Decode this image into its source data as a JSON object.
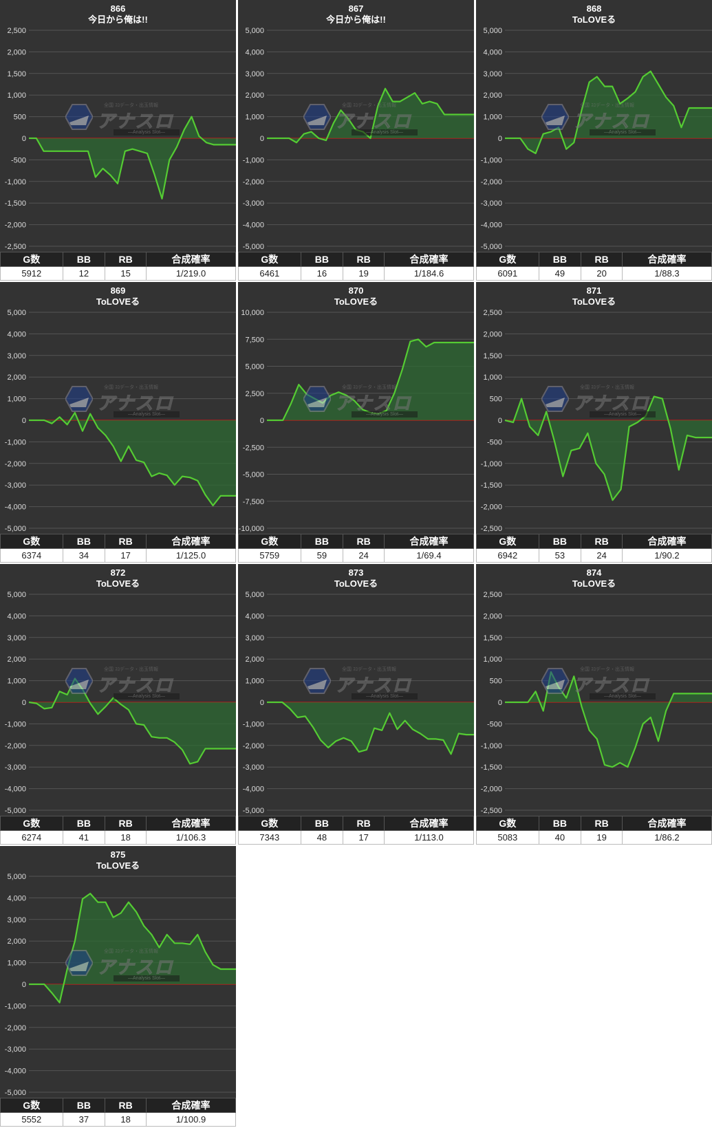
{
  "colors": {
    "panel": "#333333",
    "grid": "#555555",
    "axis_text": "#dddddd",
    "zero_line": "#b01c1c",
    "line": "#55cc33",
    "fill": "#2d6a33"
  },
  "table_headers": [
    "G数",
    "BB",
    "RB",
    "合成確率"
  ],
  "logo": {
    "brand": "アナスロ",
    "sub": "—Analysis Slot—",
    "top": "全国 ｽﾛデータ・出玉情報"
  },
  "chart_data": [
    {
      "type": "area",
      "machine": "866",
      "title": "今日から俺は!!",
      "ylim": [
        -2500,
        2500
      ],
      "yticks": [
        2500,
        2000,
        1500,
        1000,
        500,
        0,
        -500,
        -1000,
        -1500,
        -2000,
        -2500
      ],
      "tick_labels": [
        "2,500",
        "2,000",
        "1,500",
        "1,000",
        "500",
        "0",
        "-500",
        "-1,000",
        "-1,500",
        "-2,000",
        "-2,500"
      ],
      "values": [
        0,
        0,
        -300,
        -300,
        -300,
        -300,
        -300,
        -300,
        -300,
        -900,
        -700,
        -850,
        -1050,
        -300,
        -250,
        -300,
        -350,
        -850,
        -1400,
        -500,
        -200,
        200,
        500,
        50,
        -100,
        -150,
        -150,
        -150,
        -150
      ],
      "stats": {
        "g": "5912",
        "bb": "12",
        "rb": "15",
        "rate": "1/219.0"
      }
    },
    {
      "type": "area",
      "machine": "867",
      "title": "今日から俺は!!",
      "ylim": [
        -5000,
        5000
      ],
      "yticks": [
        5000,
        4000,
        3000,
        2000,
        1000,
        0,
        -1000,
        -2000,
        -3000,
        -4000,
        -5000
      ],
      "tick_labels": [
        "5,000",
        "4,000",
        "3,000",
        "2,000",
        "1,000",
        "0",
        "-1,000",
        "-2,000",
        "-3,000",
        "-4,000",
        "-5,000"
      ],
      "values": [
        0,
        0,
        0,
        0,
        -200,
        200,
        300,
        0,
        -100,
        700,
        1300,
        900,
        400,
        300,
        0,
        1500,
        2300,
        1700,
        1700,
        1900,
        2100,
        1600,
        1700,
        1600,
        1100,
        1100,
        1100,
        1100,
        1100
      ],
      "stats": {
        "g": "6461",
        "bb": "16",
        "rb": "19",
        "rate": "1/184.6"
      }
    },
    {
      "type": "area",
      "machine": "868",
      "title": "ToLOVEる",
      "ylim": [
        -5000,
        5000
      ],
      "yticks": [
        5000,
        4000,
        3000,
        2000,
        1000,
        0,
        -1000,
        -2000,
        -3000,
        -4000,
        -5000
      ],
      "tick_labels": [
        "5,000",
        "4,000",
        "3,000",
        "2,000",
        "1,000",
        "0",
        "-1,000",
        "-2,000",
        "-3,000",
        "-4,000",
        "-5,000"
      ],
      "values": [
        0,
        0,
        0,
        -500,
        -700,
        200,
        300,
        500,
        -500,
        -200,
        1300,
        2600,
        2850,
        2400,
        2400,
        1600,
        1850,
        2150,
        2850,
        3100,
        2500,
        1900,
        1500,
        500,
        1400,
        1400,
        1400,
        1400
      ],
      "stats": {
        "g": "6091",
        "bb": "49",
        "rb": "20",
        "rate": "1/88.3"
      }
    },
    {
      "type": "area",
      "machine": "869",
      "title": "ToLOVEる",
      "ylim": [
        -5000,
        5000
      ],
      "yticks": [
        5000,
        4000,
        3000,
        2000,
        1000,
        0,
        -1000,
        -2000,
        -3000,
        -4000,
        -5000
      ],
      "tick_labels": [
        "5,000",
        "4,000",
        "3,000",
        "2,000",
        "1,000",
        "0",
        "-1,000",
        "-2,000",
        "-3,000",
        "-4,000",
        "-5,000"
      ],
      "values": [
        0,
        0,
        0,
        -150,
        150,
        -200,
        350,
        -500,
        300,
        -350,
        -700,
        -1200,
        -1900,
        -1200,
        -1850,
        -1950,
        -2600,
        -2450,
        -2550,
        -3000,
        -2600,
        -2650,
        -2800,
        -3450,
        -3950,
        -3500,
        -3500,
        -3500
      ],
      "stats": {
        "g": "6374",
        "bb": "34",
        "rb": "17",
        "rate": "1/125.0"
      }
    },
    {
      "type": "area",
      "machine": "870",
      "title": "ToLOVEる",
      "ylim": [
        -10000,
        10000
      ],
      "yticks": [
        10000,
        7500,
        5000,
        2500,
        0,
        -2500,
        -5000,
        -7500,
        -10000
      ],
      "tick_labels": [
        "10,000",
        "7,500",
        "5,000",
        "2,500",
        "0",
        "-2,500",
        "-5,000",
        "-7,500",
        "-10,000"
      ],
      "values": [
        0,
        0,
        0,
        1500,
        3300,
        2400,
        2000,
        1600,
        2300,
        2600,
        2300,
        1800,
        1000,
        700,
        600,
        900,
        2500,
        4700,
        7300,
        7500,
        6800,
        7200,
        7200,
        7200,
        7200,
        7200,
        7200
      ],
      "stats": {
        "g": "5759",
        "bb": "59",
        "rb": "24",
        "rate": "1/69.4"
      }
    },
    {
      "type": "area",
      "machine": "871",
      "title": "ToLOVEる",
      "ylim": [
        -2500,
        2500
      ],
      "yticks": [
        2500,
        2000,
        1500,
        1000,
        500,
        0,
        -500,
        -1000,
        -1500,
        -2000,
        -2500
      ],
      "tick_labels": [
        "2,500",
        "2,000",
        "1,500",
        "1,000",
        "500",
        "0",
        "-500",
        "-1,000",
        "-1,500",
        "-2,000",
        "-2,500"
      ],
      "values": [
        0,
        -50,
        500,
        -150,
        -350,
        200,
        -500,
        -1300,
        -700,
        -650,
        -300,
        -1000,
        -1250,
        -1850,
        -1600,
        -150,
        -50,
        100,
        550,
        500,
        -200,
        -1150,
        -350,
        -400,
        -400,
        -400
      ],
      "stats": {
        "g": "6942",
        "bb": "53",
        "rb": "24",
        "rate": "1/90.2"
      }
    },
    {
      "type": "area",
      "machine": "872",
      "title": "ToLOVEる",
      "ylim": [
        -5000,
        5000
      ],
      "yticks": [
        5000,
        4000,
        3000,
        2000,
        1000,
        0,
        -1000,
        -2000,
        -3000,
        -4000,
        -5000
      ],
      "tick_labels": [
        "5,000",
        "4,000",
        "3,000",
        "2,000",
        "1,000",
        "0",
        "-1,000",
        "-2,000",
        "-3,000",
        "-4,000",
        "-5,000"
      ],
      "values": [
        0,
        -50,
        -300,
        -250,
        500,
        350,
        1100,
        600,
        -50,
        -550,
        -200,
        200,
        -100,
        -350,
        -1000,
        -1050,
        -1600,
        -1650,
        -1650,
        -1850,
        -2200,
        -2850,
        -2750,
        -2150,
        -2150,
        -2150,
        -2150,
        -2150
      ],
      "stats": {
        "g": "6274",
        "bb": "41",
        "rb": "18",
        "rate": "1/106.3"
      }
    },
    {
      "type": "area",
      "machine": "873",
      "title": "ToLOVEる",
      "ylim": [
        -5000,
        5000
      ],
      "yticks": [
        5000,
        4000,
        3000,
        2000,
        1000,
        0,
        -1000,
        -2000,
        -3000,
        -4000,
        -5000
      ],
      "tick_labels": [
        "5,000",
        "4,000",
        "3,000",
        "2,000",
        "1,000",
        "0",
        "-1,000",
        "-2,000",
        "-3,000",
        "-4,000",
        "-5,000"
      ],
      "values": [
        0,
        0,
        0,
        -300,
        -700,
        -650,
        -1150,
        -1750,
        -2100,
        -1800,
        -1650,
        -1800,
        -2300,
        -2200,
        -1200,
        -1300,
        -500,
        -1250,
        -850,
        -1250,
        -1450,
        -1700,
        -1700,
        -1750,
        -2400,
        -1450,
        -1500,
        -1500
      ],
      "stats": {
        "g": "7343",
        "bb": "48",
        "rb": "17",
        "rate": "1/113.0"
      }
    },
    {
      "type": "area",
      "machine": "874",
      "title": "ToLOVEる",
      "ylim": [
        -2500,
        2500
      ],
      "yticks": [
        2500,
        2000,
        1500,
        1000,
        500,
        0,
        -500,
        -1000,
        -1500,
        -2000,
        -2500
      ],
      "tick_labels": [
        "2,500",
        "2,000",
        "1,500",
        "1,000",
        "500",
        "0",
        "-500",
        "-1,000",
        "-1,500",
        "-2,000",
        "-2,500"
      ],
      "values": [
        0,
        0,
        0,
        0,
        250,
        -200,
        700,
        350,
        100,
        600,
        -100,
        -650,
        -850,
        -1450,
        -1500,
        -1400,
        -1500,
        -1050,
        -500,
        -350,
        -900,
        -200,
        200,
        200,
        200,
        200,
        200,
        200
      ],
      "stats": {
        "g": "5083",
        "bb": "40",
        "rb": "19",
        "rate": "1/86.2"
      }
    },
    {
      "type": "area",
      "machine": "875",
      "title": "ToLOVEる",
      "ylim": [
        -5000,
        5000
      ],
      "yticks": [
        5000,
        4000,
        3000,
        2000,
        1000,
        0,
        -1000,
        -2000,
        -3000,
        -4000,
        -5000
      ],
      "tick_labels": [
        "5,000",
        "4,000",
        "3,000",
        "2,000",
        "1,000",
        "0",
        "-1,000",
        "-2,000",
        "-3,000",
        "-4,000",
        "-5,000"
      ],
      "values": [
        0,
        0,
        0,
        -400,
        -850,
        700,
        2000,
        3950,
        4200,
        3800,
        3800,
        3100,
        3300,
        3800,
        3350,
        2700,
        2300,
        1700,
        2300,
        1900,
        1900,
        1850,
        2300,
        1500,
        900,
        700,
        700,
        700
      ],
      "stats": {
        "g": "5552",
        "bb": "37",
        "rb": "18",
        "rate": "1/100.9"
      }
    }
  ]
}
